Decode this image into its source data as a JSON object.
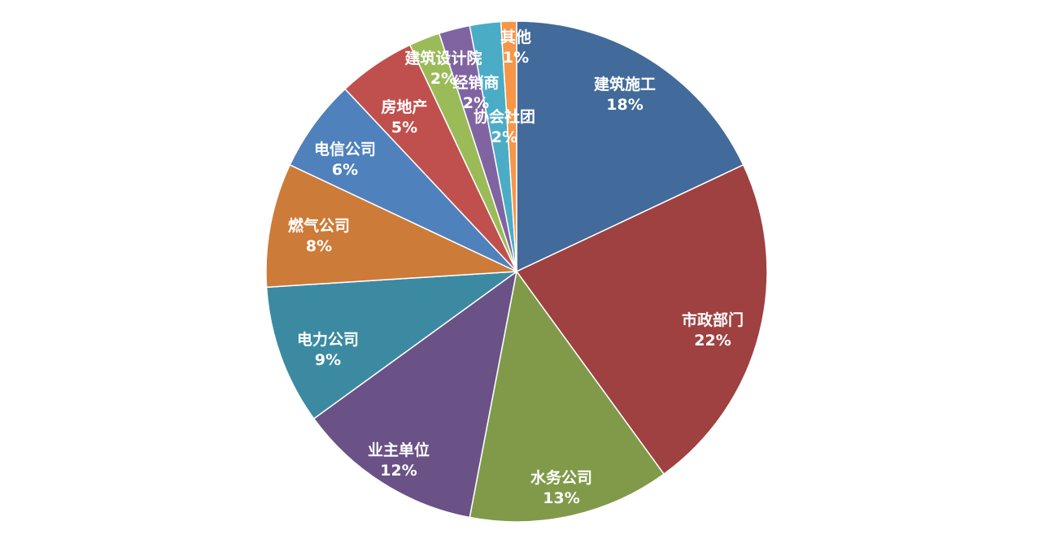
{
  "chart_data": {
    "type": "pie",
    "title": "",
    "start_angle_deg": 0,
    "direction": "clockwise",
    "legend": "none",
    "slices": [
      {
        "label": "建筑施工",
        "value": 18,
        "value_text": "18%",
        "color": "#426A9A"
      },
      {
        "label": "市政部门",
        "value": 22,
        "value_text": "22%",
        "color": "#9E4140"
      },
      {
        "label": "水务公司",
        "value": 13,
        "value_text": "13%",
        "color": "#809A4A"
      },
      {
        "label": "业主单位",
        "value": 12,
        "value_text": "12%",
        "color": "#6A5287"
      },
      {
        "label": "电力公司",
        "value": 9,
        "value_text": "9%",
        "color": "#3B8AA2"
      },
      {
        "label": "燃气公司",
        "value": 8,
        "value_text": "8%",
        "color": "#CD7B38"
      },
      {
        "label": "电信公司",
        "value": 6,
        "value_text": "6%",
        "color": "#4F81BD"
      },
      {
        "label": "房地产",
        "value": 5,
        "value_text": "5%",
        "color": "#C0504D"
      },
      {
        "label": "建筑设计院",
        "value": 2,
        "value_text": "2%",
        "color": "#9BBB59"
      },
      {
        "label": "经销商",
        "value": 2,
        "value_text": "2%",
        "color": "#8064A2"
      },
      {
        "label": "协会社团",
        "value": 2,
        "value_text": "2%",
        "color": "#4BACC6"
      },
      {
        "label": "其他",
        "value": 1,
        "value_text": "1%",
        "color": "#F79646"
      }
    ]
  }
}
